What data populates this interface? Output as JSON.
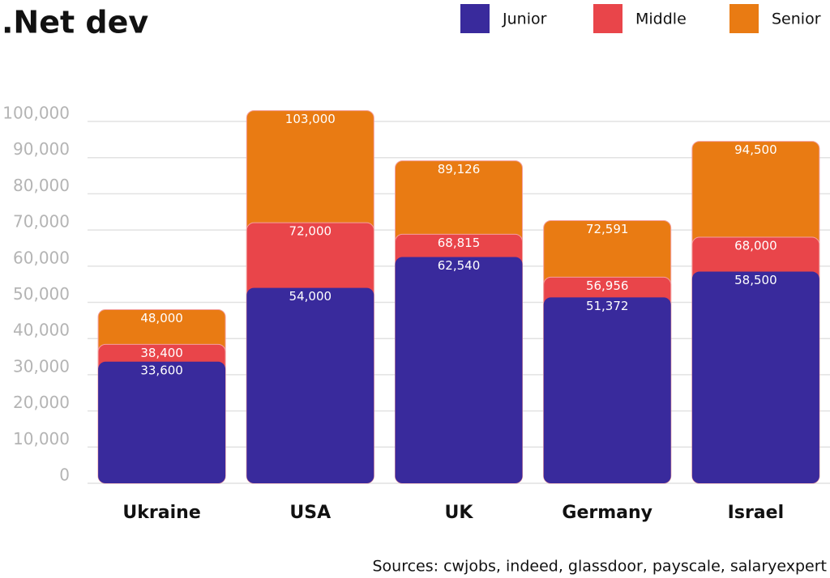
{
  "chart_data": {
    "type": "bar",
    "title": ".Net dev",
    "categories": [
      "Ukraine",
      "USA",
      "UK",
      "Germany",
      "Israel"
    ],
    "series": [
      {
        "name": "Junior",
        "color": "#392a9c",
        "values": [
          33600,
          54000,
          62540,
          51372,
          58500
        ],
        "value_labels": [
          "33,600",
          "54,000",
          "62,540",
          "51,372",
          "58,500"
        ]
      },
      {
        "name": "Middle",
        "color": "#e9454a",
        "values": [
          38400,
          72000,
          68815,
          56956,
          68000
        ],
        "value_labels": [
          "38,400",
          "72,000",
          "68,815",
          "56,956",
          "68,000"
        ]
      },
      {
        "name": "Senior",
        "color": "#e97b13",
        "values": [
          48000,
          103000,
          89126,
          72591,
          94500
        ],
        "value_labels": [
          "48,000",
          "103,000",
          "89,126",
          "72,591",
          "94,500"
        ]
      }
    ],
    "ylim": [
      0,
      100000
    ],
    "yticks": [
      0,
      {
        "value": 10000,
        "label": "10,000"
      },
      {
        "value": 20000,
        "label": "20,000"
      },
      {
        "value": 30000,
        "label": "30,000"
      },
      {
        "value": 40000,
        "label": "40,000"
      },
      {
        "value": 50000,
        "label": "50,000"
      },
      {
        "value": 60000,
        "label": "60,000"
      },
      {
        "value": 70000,
        "label": "70,000"
      },
      {
        "value": 80000,
        "label": "80,000"
      },
      {
        "value": 90000,
        "label": "90,000"
      },
      {
        "value": 100000,
        "label": "100,000"
      }
    ],
    "grid": true,
    "legend": "top-right",
    "source": "Sources: cwjobs, indeed, glassdoor, payscale, salaryexpert"
  }
}
